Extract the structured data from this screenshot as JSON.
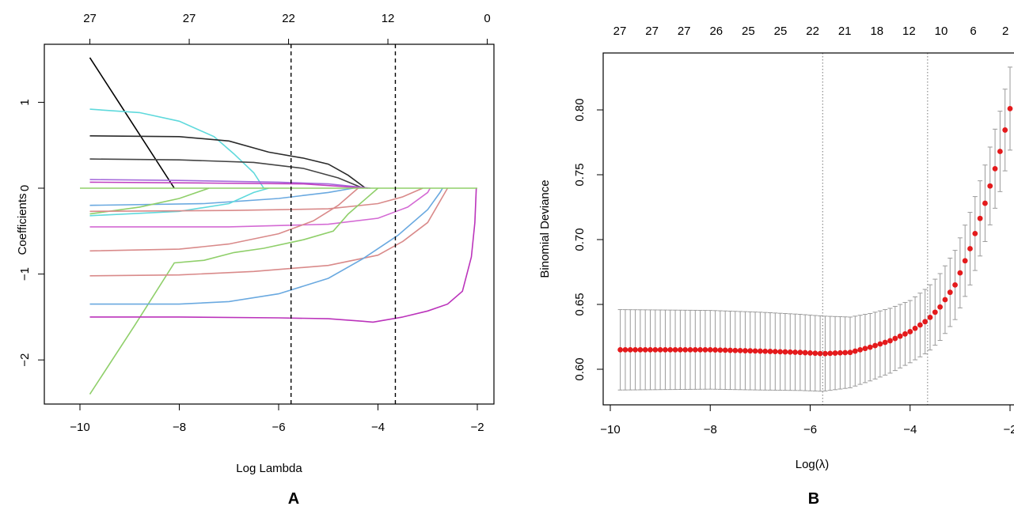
{
  "panels": [
    "A",
    "B"
  ],
  "chart_data": [
    {
      "panel": "A",
      "type": "line",
      "xlabel": "Log Lambda",
      "ylabel": "Coefficients",
      "xlim": [
        -10,
        -2
      ],
      "ylim": [
        -2.5,
        1.6
      ],
      "x_ticks": [
        -10,
        -8,
        -6,
        -4,
        -2
      ],
      "y_ticks": [
        -2,
        -1,
        0,
        1
      ],
      "top_axis": [
        {
          "x": -9.8,
          "label": "27"
        },
        {
          "x": -7.8,
          "label": "27"
        },
        {
          "x": -5.8,
          "label": "22"
        },
        {
          "x": -3.8,
          "label": "12"
        },
        {
          "x": -1.8,
          "label": "0"
        }
      ],
      "vlines": [
        -5.75,
        -3.65
      ],
      "series": [
        {
          "color": "#000000",
          "points": [
            [
              -9.8,
              1.52
            ],
            [
              -8.1,
              0.0
            ]
          ]
        },
        {
          "color": "#5fd9dc",
          "points": [
            [
              -9.8,
              0.92
            ],
            [
              -8.8,
              0.88
            ],
            [
              -8.0,
              0.78
            ],
            [
              -7.3,
              0.6
            ],
            [
              -6.9,
              0.4
            ],
            [
              -6.5,
              0.18
            ],
            [
              -6.3,
              0.0
            ]
          ]
        },
        {
          "color": "#2a2a2a",
          "points": [
            [
              -9.8,
              0.61
            ],
            [
              -8.0,
              0.6
            ],
            [
              -7.0,
              0.55
            ],
            [
              -6.2,
              0.42
            ],
            [
              -5.5,
              0.35
            ],
            [
              -5.0,
              0.28
            ],
            [
              -4.6,
              0.15
            ],
            [
              -4.25,
              0.0
            ]
          ]
        },
        {
          "color": "#444444",
          "points": [
            [
              -9.8,
              0.34
            ],
            [
              -8.0,
              0.33
            ],
            [
              -6.5,
              0.3
            ],
            [
              -5.5,
              0.23
            ],
            [
              -4.8,
              0.12
            ],
            [
              -4.3,
              0.0
            ]
          ]
        },
        {
          "color": "#a56adb",
          "points": [
            [
              -9.8,
              0.1
            ],
            [
              -8.0,
              0.09
            ],
            [
              -6.0,
              0.07
            ],
            [
              -5.0,
              0.05
            ],
            [
              -4.15,
              0.0
            ]
          ]
        },
        {
          "color": "#c040c0",
          "points": [
            [
              -9.8,
              0.07
            ],
            [
              -7.5,
              0.06
            ],
            [
              -5.5,
              0.05
            ],
            [
              -4.2,
              0.0
            ]
          ]
        },
        {
          "color": "#6aa9e0",
          "points": [
            [
              -9.8,
              -0.2
            ],
            [
              -7.5,
              -0.18
            ],
            [
              -6.0,
              -0.12
            ],
            [
              -5.0,
              -0.05
            ],
            [
              -4.5,
              0.0
            ]
          ]
        },
        {
          "color": "#8fcf6a",
          "points": [
            [
              -9.8,
              -0.3
            ],
            [
              -8.8,
              -0.22
            ],
            [
              -8.0,
              -0.12
            ],
            [
              -7.4,
              0.0
            ]
          ]
        },
        {
          "color": "#5fd9dc",
          "points": [
            [
              -9.8,
              -0.32
            ],
            [
              -8.0,
              -0.27
            ],
            [
              -7.0,
              -0.18
            ],
            [
              -6.5,
              -0.05
            ],
            [
              -6.2,
              0.0
            ]
          ]
        },
        {
          "color": "#d98a8a",
          "points": [
            [
              -9.8,
              -0.27
            ],
            [
              -7.0,
              -0.26
            ],
            [
              -5.0,
              -0.24
            ],
            [
              -4.0,
              -0.18
            ],
            [
              -3.5,
              -0.1
            ],
            [
              -3.1,
              0.0
            ]
          ]
        },
        {
          "color": "#d46ad4",
          "points": [
            [
              -9.8,
              -0.45
            ],
            [
              -7.0,
              -0.45
            ],
            [
              -5.0,
              -0.42
            ],
            [
              -4.0,
              -0.35
            ],
            [
              -3.4,
              -0.22
            ],
            [
              -3.0,
              -0.05
            ],
            [
              -2.95,
              0.0
            ]
          ]
        },
        {
          "color": "#d98a8a",
          "points": [
            [
              -9.8,
              -0.73
            ],
            [
              -8.0,
              -0.71
            ],
            [
              -7.0,
              -0.65
            ],
            [
              -6.0,
              -0.53
            ],
            [
              -5.3,
              -0.38
            ],
            [
              -4.8,
              -0.2
            ],
            [
              -4.5,
              -0.05
            ],
            [
              -4.4,
              0.0
            ]
          ]
        },
        {
          "color": "#8fcf6a",
          "points": [
            [
              -9.8,
              -2.4
            ],
            [
              -8.9,
              -1.6
            ],
            [
              -8.1,
              -0.87
            ],
            [
              -7.5,
              -0.84
            ],
            [
              -6.9,
              -0.75
            ],
            [
              -6.3,
              -0.7
            ],
            [
              -5.5,
              -0.6
            ],
            [
              -4.9,
              -0.5
            ],
            [
              -4.6,
              -0.3
            ],
            [
              -4.3,
              -0.15
            ],
            [
              -4.0,
              0.0
            ]
          ]
        },
        {
          "color": "#d98a8a",
          "points": [
            [
              -9.8,
              -1.02
            ],
            [
              -8.0,
              -1.01
            ],
            [
              -6.5,
              -0.97
            ],
            [
              -5.0,
              -0.9
            ],
            [
              -4.0,
              -0.78
            ],
            [
              -3.5,
              -0.62
            ],
            [
              -3.0,
              -0.4
            ],
            [
              -2.7,
              -0.1
            ],
            [
              -2.6,
              0.0
            ]
          ]
        },
        {
          "color": "#6aa9e0",
          "points": [
            [
              -9.8,
              -1.35
            ],
            [
              -8.0,
              -1.35
            ],
            [
              -7.0,
              -1.32
            ],
            [
              -6.0,
              -1.23
            ],
            [
              -5.0,
              -1.05
            ],
            [
              -4.3,
              -0.82
            ],
            [
              -3.6,
              -0.55
            ],
            [
              -3.0,
              -0.25
            ],
            [
              -2.75,
              -0.05
            ],
            [
              -2.7,
              0.0
            ]
          ]
        },
        {
          "color": "#bb33bb",
          "points": [
            [
              -9.8,
              -1.5
            ],
            [
              -8.0,
              -1.5
            ],
            [
              -6.0,
              -1.51
            ],
            [
              -5.0,
              -1.52
            ],
            [
              -4.3,
              -1.55
            ],
            [
              -4.1,
              -1.56
            ],
            [
              -3.5,
              -1.5
            ],
            [
              -3.0,
              -1.43
            ],
            [
              -2.6,
              -1.35
            ],
            [
              -2.3,
              -1.2
            ],
            [
              -2.12,
              -0.8
            ],
            [
              -2.05,
              -0.4
            ],
            [
              -2.02,
              0.0
            ]
          ]
        },
        {
          "color": "#8fcf6a",
          "points": [
            [
              -10.0,
              0.0
            ],
            [
              -2.0,
              0.0
            ]
          ]
        }
      ]
    },
    {
      "panel": "B",
      "type": "scatter",
      "xlabel": "Log(λ)",
      "ylabel": "Binomial Deviance",
      "xlim": [
        -10,
        -2
      ],
      "ylim": [
        0.58,
        0.83
      ],
      "x_ticks": [
        -10,
        -8,
        -6,
        -4,
        -2
      ],
      "y_ticks": [
        0.6,
        0.65,
        0.7,
        0.75,
        0.8
      ],
      "top_axis": [
        {
          "x": -9.8,
          "label": "27"
        },
        {
          "x": -9.26,
          "label": "27"
        },
        {
          "x": -8.72,
          "label": "27"
        },
        {
          "x": -8.18,
          "label": "26"
        },
        {
          "x": -7.64,
          "label": "25"
        },
        {
          "x": -7.1,
          "label": "25"
        },
        {
          "x": -6.56,
          "label": "22"
        },
        {
          "x": -6.02,
          "label": "21"
        },
        {
          "x": -5.48,
          "label": "18"
        },
        {
          "x": -4.94,
          "label": "12"
        },
        {
          "x": -4.4,
          "label": "10"
        },
        {
          "x": -3.86,
          "label": "6"
        },
        {
          "x": -3.32,
          "label": "2"
        }
      ],
      "vlines": [
        -5.75,
        -3.65
      ],
      "series": [
        {
          "name": "",
          "x_start": -9.8,
          "x_end": -2.0,
          "anchors": [
            [
              -9.8,
              0.615
            ],
            [
              -8.0,
              0.615
            ],
            [
              -7.0,
              0.614
            ],
            [
              -6.2,
              0.613
            ],
            [
              -5.75,
              0.612
            ],
            [
              -5.2,
              0.613
            ],
            [
              -4.8,
              0.617
            ],
            [
              -4.4,
              0.622
            ],
            [
              -4.0,
              0.629
            ],
            [
              -3.65,
              0.638
            ],
            [
              -3.4,
              0.648
            ],
            [
              -3.1,
              0.665
            ],
            [
              -2.8,
              0.693
            ],
            [
              -2.5,
              0.728
            ],
            [
              -2.2,
              0.768
            ],
            [
              -2.0,
              0.801
            ]
          ],
          "se_anchors": [
            [
              -9.8,
              0.031
            ],
            [
              -7.0,
              0.03
            ],
            [
              -5.75,
              0.029
            ],
            [
              -4.8,
              0.026
            ],
            [
              -4.0,
              0.024
            ],
            [
              -3.65,
              0.025
            ],
            [
              -3.0,
              0.027
            ],
            [
              -2.0,
              0.032
            ]
          ]
        }
      ]
    }
  ]
}
